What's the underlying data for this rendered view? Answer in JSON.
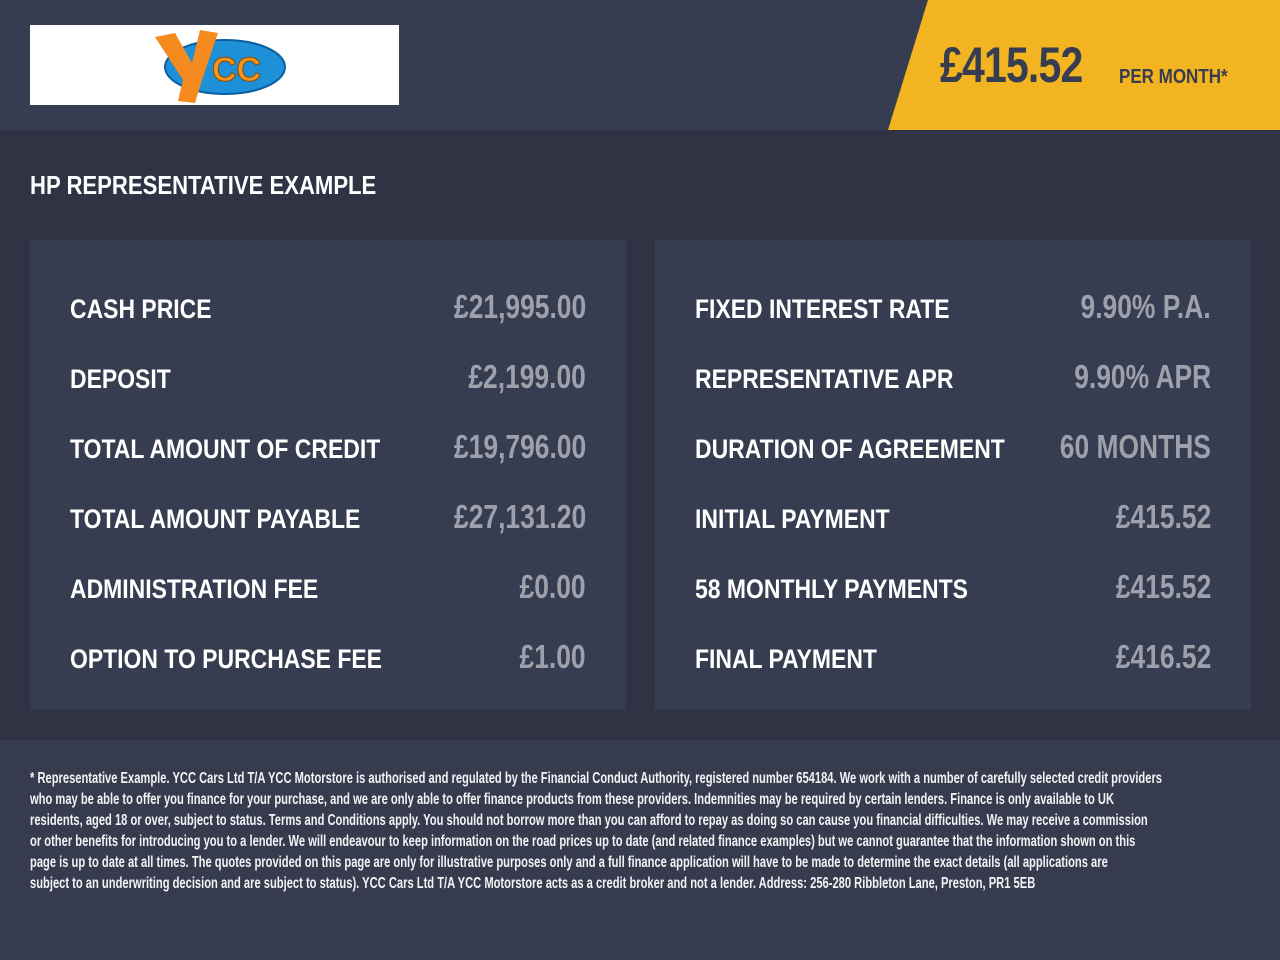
{
  "header": {
    "logo_text": "YCC",
    "price": "£415.52",
    "per_month": "PER MONTH*",
    "accent_color": "#f2b420"
  },
  "title": "HP REPRESENTATIVE EXAMPLE",
  "left": [
    {
      "label": "CASH PRICE",
      "value": "£21,995.00"
    },
    {
      "label": "DEPOSIT",
      "value": "£2,199.00"
    },
    {
      "label": "TOTAL AMOUNT OF CREDIT",
      "value": "£19,796.00"
    },
    {
      "label": "TOTAL AMOUNT PAYABLE",
      "value": "£27,131.20"
    },
    {
      "label": "ADMINISTRATION FEE",
      "value": "£0.00"
    },
    {
      "label": "OPTION TO PURCHASE FEE",
      "value": "£1.00"
    }
  ],
  "right": [
    {
      "label": "FIXED INTEREST RATE",
      "value": "9.90% P.A."
    },
    {
      "label": "REPRESENTATIVE APR",
      "value": "9.90% APR"
    },
    {
      "label": "DURATION OF AGREEMENT",
      "value": "60 MONTHS"
    },
    {
      "label": "INITIAL PAYMENT",
      "value": "£415.52"
    },
    {
      "label": "58 MONTHLY PAYMENTS",
      "value": "£415.52"
    },
    {
      "label": "FINAL PAYMENT",
      "value": "£416.52"
    }
  ],
  "footer": [
    "* Representative Example. YCC Cars Ltd T/A YCC Motorstore is authorised and regulated by the Financial Conduct Authority, registered number 654184. We work with a number of carefully selected credit providers",
    "who may be able to offer you finance for your purchase, and we are only able to offer finance products from these providers. Indemnities may be required by certain lenders. Finance is only available to UK",
    "residents, aged 18 or over, subject to status. Terms and Conditions apply. You should not borrow more than you can afford to repay as doing so can cause you financial difficulties. We may receive a commission",
    "or other benefits for introducing you to a lender. We will endeavour to keep information on the road prices up to date (and related finance examples) but we cannot guarantee that the information shown on this",
    "page is up to date at all times. The quotes provided on this page are only for illustrative purposes only and a full finance application will have to be made to determine the exact details (all applications are",
    "subject to an underwriting decision and are subject to status). YCC Cars Ltd T/A YCC Motorstore acts as a credit broker and not a lender. Address: 256-280 Ribbleton Lane, Preston, PR1 5EB"
  ]
}
